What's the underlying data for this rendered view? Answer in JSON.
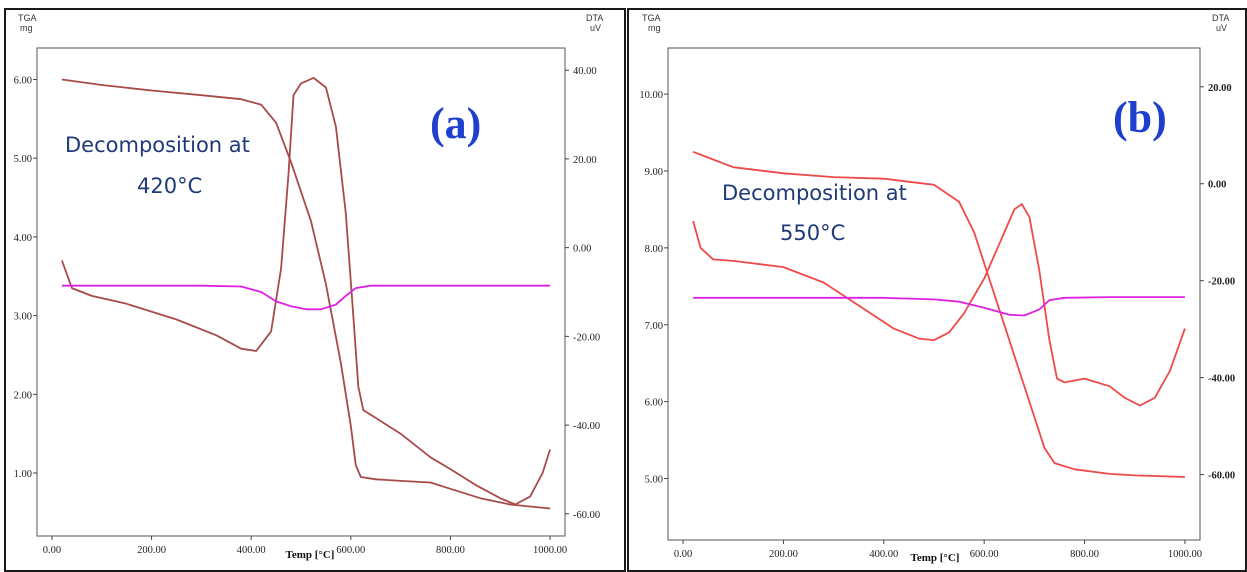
{
  "chart_data": [
    {
      "type": "line",
      "panel_label": "(a)",
      "annotation": [
        "Decomposition at",
        "420°C"
      ],
      "left_axis_title": [
        "TGA",
        "mg"
      ],
      "right_axis_title": [
        "DTA",
        "uV"
      ],
      "xlabel": "Temp [°C]",
      "xlim": [
        -30,
        1030
      ],
      "ylim_left": [
        0.2,
        6.4
      ],
      "ylim_right": [
        -65,
        45
      ],
      "x_ticks": [
        "0.00",
        "200.00",
        "400.00",
        "600.00",
        "800.00",
        "1000.00"
      ],
      "y_left_ticks": [
        "1.00",
        "2.00",
        "3.00",
        "4.00",
        "5.00",
        "6.00"
      ],
      "y_right_ticks": [
        "-60.00",
        "-40.00",
        "-20.00",
        "0.00",
        "20.00",
        "40.00"
      ],
      "grid": false,
      "series": [
        {
          "axis": "left",
          "color": "#a84a4a",
          "points": [
            [
              20,
              6.0
            ],
            [
              100,
              5.93
            ],
            [
              200,
              5.86
            ],
            [
              300,
              5.8
            ],
            [
              380,
              5.75
            ],
            [
              420,
              5.68
            ],
            [
              450,
              5.45
            ],
            [
              480,
              4.95
            ],
            [
              520,
              4.2
            ],
            [
              550,
              3.4
            ],
            [
              580,
              2.4
            ],
            [
              600,
              1.6
            ],
            [
              610,
              1.1
            ],
            [
              620,
              0.95
            ],
            [
              650,
              0.92
            ],
            [
              700,
              0.9
            ],
            [
              760,
              0.88
            ],
            [
              800,
              0.8
            ],
            [
              860,
              0.68
            ],
            [
              920,
              0.6
            ],
            [
              1000,
              0.55
            ]
          ]
        },
        {
          "axis": "left",
          "color": "#a84a4a",
          "points": [
            [
              20,
              3.7
            ],
            [
              40,
              3.35
            ],
            [
              80,
              3.25
            ],
            [
              150,
              3.15
            ],
            [
              250,
              2.95
            ],
            [
              330,
              2.75
            ],
            [
              380,
              2.58
            ],
            [
              410,
              2.55
            ],
            [
              440,
              2.8
            ],
            [
              460,
              3.6
            ],
            [
              475,
              4.8
            ],
            [
              485,
              5.8
            ],
            [
              500,
              5.95
            ],
            [
              525,
              6.02
            ],
            [
              550,
              5.9
            ],
            [
              570,
              5.4
            ],
            [
              590,
              4.3
            ],
            [
              605,
              3.0
            ],
            [
              615,
              2.1
            ],
            [
              625,
              1.8
            ],
            [
              650,
              1.7
            ],
            [
              700,
              1.5
            ],
            [
              760,
              1.2
            ],
            [
              800,
              1.05
            ],
            [
              850,
              0.85
            ],
            [
              900,
              0.68
            ],
            [
              930,
              0.6
            ],
            [
              960,
              0.7
            ],
            [
              985,
              1.0
            ],
            [
              1000,
              1.3
            ]
          ]
        },
        {
          "axis": "left",
          "color": "#e020e0",
          "points": [
            [
              20,
              3.38
            ],
            [
              100,
              3.38
            ],
            [
              200,
              3.38
            ],
            [
              300,
              3.38
            ],
            [
              380,
              3.37
            ],
            [
              420,
              3.3
            ],
            [
              450,
              3.18
            ],
            [
              480,
              3.12
            ],
            [
              510,
              3.08
            ],
            [
              540,
              3.08
            ],
            [
              570,
              3.14
            ],
            [
              590,
              3.25
            ],
            [
              610,
              3.35
            ],
            [
              640,
              3.38
            ],
            [
              700,
              3.38
            ],
            [
              800,
              3.38
            ],
            [
              900,
              3.38
            ],
            [
              1000,
              3.38
            ]
          ]
        }
      ]
    },
    {
      "type": "line",
      "panel_label": "(b)",
      "annotation": [
        "Decomposition at",
        "550°C"
      ],
      "left_axis_title": [
        "TGA",
        "mg"
      ],
      "right_axis_title": [
        "DTA",
        "uV"
      ],
      "xlabel": "Temp [°C]",
      "xlim": [
        -30,
        1030
      ],
      "ylim_left": [
        4.2,
        10.6
      ],
      "ylim_right": [
        -73.5,
        28
      ],
      "x_ticks": [
        "0.00",
        "200.00",
        "400.00",
        "600.00",
        "800.00",
        "1000.00"
      ],
      "y_left_ticks": [
        "5.00",
        "6.00",
        "7.00",
        "8.00",
        "9.00",
        "10.00"
      ],
      "y_right_ticks": [
        "-60.00",
        "-40.00",
        "-20.00",
        "0.00",
        "20.00"
      ],
      "grid": false,
      "series": [
        {
          "axis": "left",
          "color": "#ee4a4a",
          "points": [
            [
              20,
              9.25
            ],
            [
              60,
              9.15
            ],
            [
              100,
              9.05
            ],
            [
              200,
              8.97
            ],
            [
              300,
              8.92
            ],
            [
              400,
              8.9
            ],
            [
              500,
              8.82
            ],
            [
              550,
              8.6
            ],
            [
              580,
              8.2
            ],
            [
              610,
              7.6
            ],
            [
              640,
              7.0
            ],
            [
              670,
              6.4
            ],
            [
              700,
              5.8
            ],
            [
              720,
              5.4
            ],
            [
              740,
              5.2
            ],
            [
              780,
              5.12
            ],
            [
              850,
              5.06
            ],
            [
              900,
              5.04
            ],
            [
              1000,
              5.02
            ]
          ]
        },
        {
          "axis": "left",
          "color": "#ee4a4a",
          "points": [
            [
              20,
              8.35
            ],
            [
              35,
              8.0
            ],
            [
              60,
              7.85
            ],
            [
              100,
              7.83
            ],
            [
              200,
              7.75
            ],
            [
              280,
              7.55
            ],
            [
              350,
              7.25
            ],
            [
              420,
              6.95
            ],
            [
              470,
              6.82
            ],
            [
              500,
              6.8
            ],
            [
              530,
              6.9
            ],
            [
              560,
              7.15
            ],
            [
              600,
              7.6
            ],
            [
              640,
              8.2
            ],
            [
              660,
              8.5
            ],
            [
              675,
              8.57
            ],
            [
              690,
              8.4
            ],
            [
              710,
              7.7
            ],
            [
              730,
              6.8
            ],
            [
              745,
              6.3
            ],
            [
              760,
              6.25
            ],
            [
              800,
              6.3
            ],
            [
              850,
              6.2
            ],
            [
              880,
              6.05
            ],
            [
              910,
              5.95
            ],
            [
              940,
              6.05
            ],
            [
              970,
              6.4
            ],
            [
              1000,
              6.95
            ]
          ]
        },
        {
          "axis": "left",
          "color": "#e020e0",
          "points": [
            [
              20,
              7.35
            ],
            [
              100,
              7.35
            ],
            [
              200,
              7.35
            ],
            [
              300,
              7.35
            ],
            [
              400,
              7.35
            ],
            [
              500,
              7.33
            ],
            [
              550,
              7.3
            ],
            [
              600,
              7.22
            ],
            [
              650,
              7.13
            ],
            [
              680,
              7.12
            ],
            [
              710,
              7.2
            ],
            [
              730,
              7.32
            ],
            [
              760,
              7.35
            ],
            [
              850,
              7.36
            ],
            [
              1000,
              7.36
            ]
          ]
        }
      ]
    }
  ]
}
